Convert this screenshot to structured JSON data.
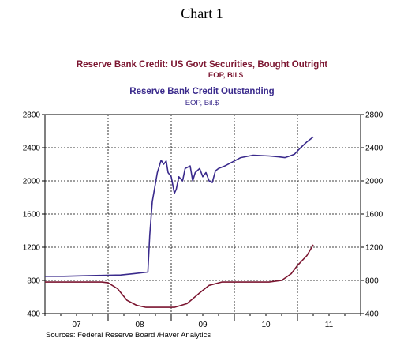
{
  "title": "Chart 1",
  "source": "Sources:  Federal Reserve Board /Haver Analytics",
  "colors": {
    "series1": "#7b1530",
    "series2": "#3a2a8c"
  },
  "chart_data": {
    "type": "line",
    "title": "Chart 1",
    "x_tick_labels": [
      "07",
      "08",
      "09",
      "10",
      "11"
    ],
    "x_tick_positions": [
      2007.5,
      2008.5,
      2009.5,
      2010.5,
      2011.5
    ],
    "xlim": [
      2007.0,
      2012.0
    ],
    "y_ticks": [
      400,
      800,
      1200,
      1600,
      2000,
      2400,
      2800
    ],
    "ylim": [
      400,
      2800
    ],
    "grid": true,
    "series": [
      {
        "name": "Reserve Bank Credit: US Govt Securities, Bought Outright",
        "unit": "EOP, Bil.$",
        "color": "#7b1530",
        "x": [
          2007.0,
          2007.9,
          2008.0,
          2008.15,
          2008.3,
          2008.45,
          2008.6,
          2008.9,
          2009.05,
          2009.25,
          2009.45,
          2009.6,
          2009.8,
          2010.2,
          2010.55,
          2010.75,
          2010.9,
          2011.0,
          2011.15,
          2011.25
        ],
        "values": [
          780,
          780,
          770,
          700,
          560,
          500,
          475,
          475,
          475,
          520,
          650,
          740,
          780,
          780,
          780,
          800,
          880,
          980,
          1100,
          1230
        ]
      },
      {
        "name": "Reserve Bank Credit Outstanding",
        "unit": "EOP, Bil.$",
        "color": "#3a2a8c",
        "x": [
          2007.0,
          2007.3,
          2007.6,
          2007.9,
          2008.2,
          2008.4,
          2008.63,
          2008.66,
          2008.7,
          2008.78,
          2008.84,
          2008.88,
          2008.92,
          2008.95,
          2009.0,
          2009.05,
          2009.08,
          2009.12,
          2009.18,
          2009.22,
          2009.3,
          2009.34,
          2009.38,
          2009.45,
          2009.5,
          2009.55,
          2009.6,
          2009.65,
          2009.7,
          2009.75,
          2009.85,
          2009.95,
          2010.1,
          2010.3,
          2010.55,
          2010.7,
          2010.8,
          2010.88,
          2010.95,
          2011.05,
          2011.15,
          2011.25
        ],
        "values": [
          850,
          850,
          855,
          860,
          865,
          880,
          900,
          1350,
          1750,
          2100,
          2250,
          2200,
          2240,
          2100,
          2050,
          1850,
          1900,
          2050,
          2000,
          2150,
          2180,
          2000,
          2100,
          2150,
          2050,
          2100,
          2000,
          1980,
          2120,
          2150,
          2180,
          2220,
          2280,
          2310,
          2300,
          2290,
          2280,
          2300,
          2320,
          2400,
          2470,
          2530
        ]
      }
    ]
  }
}
